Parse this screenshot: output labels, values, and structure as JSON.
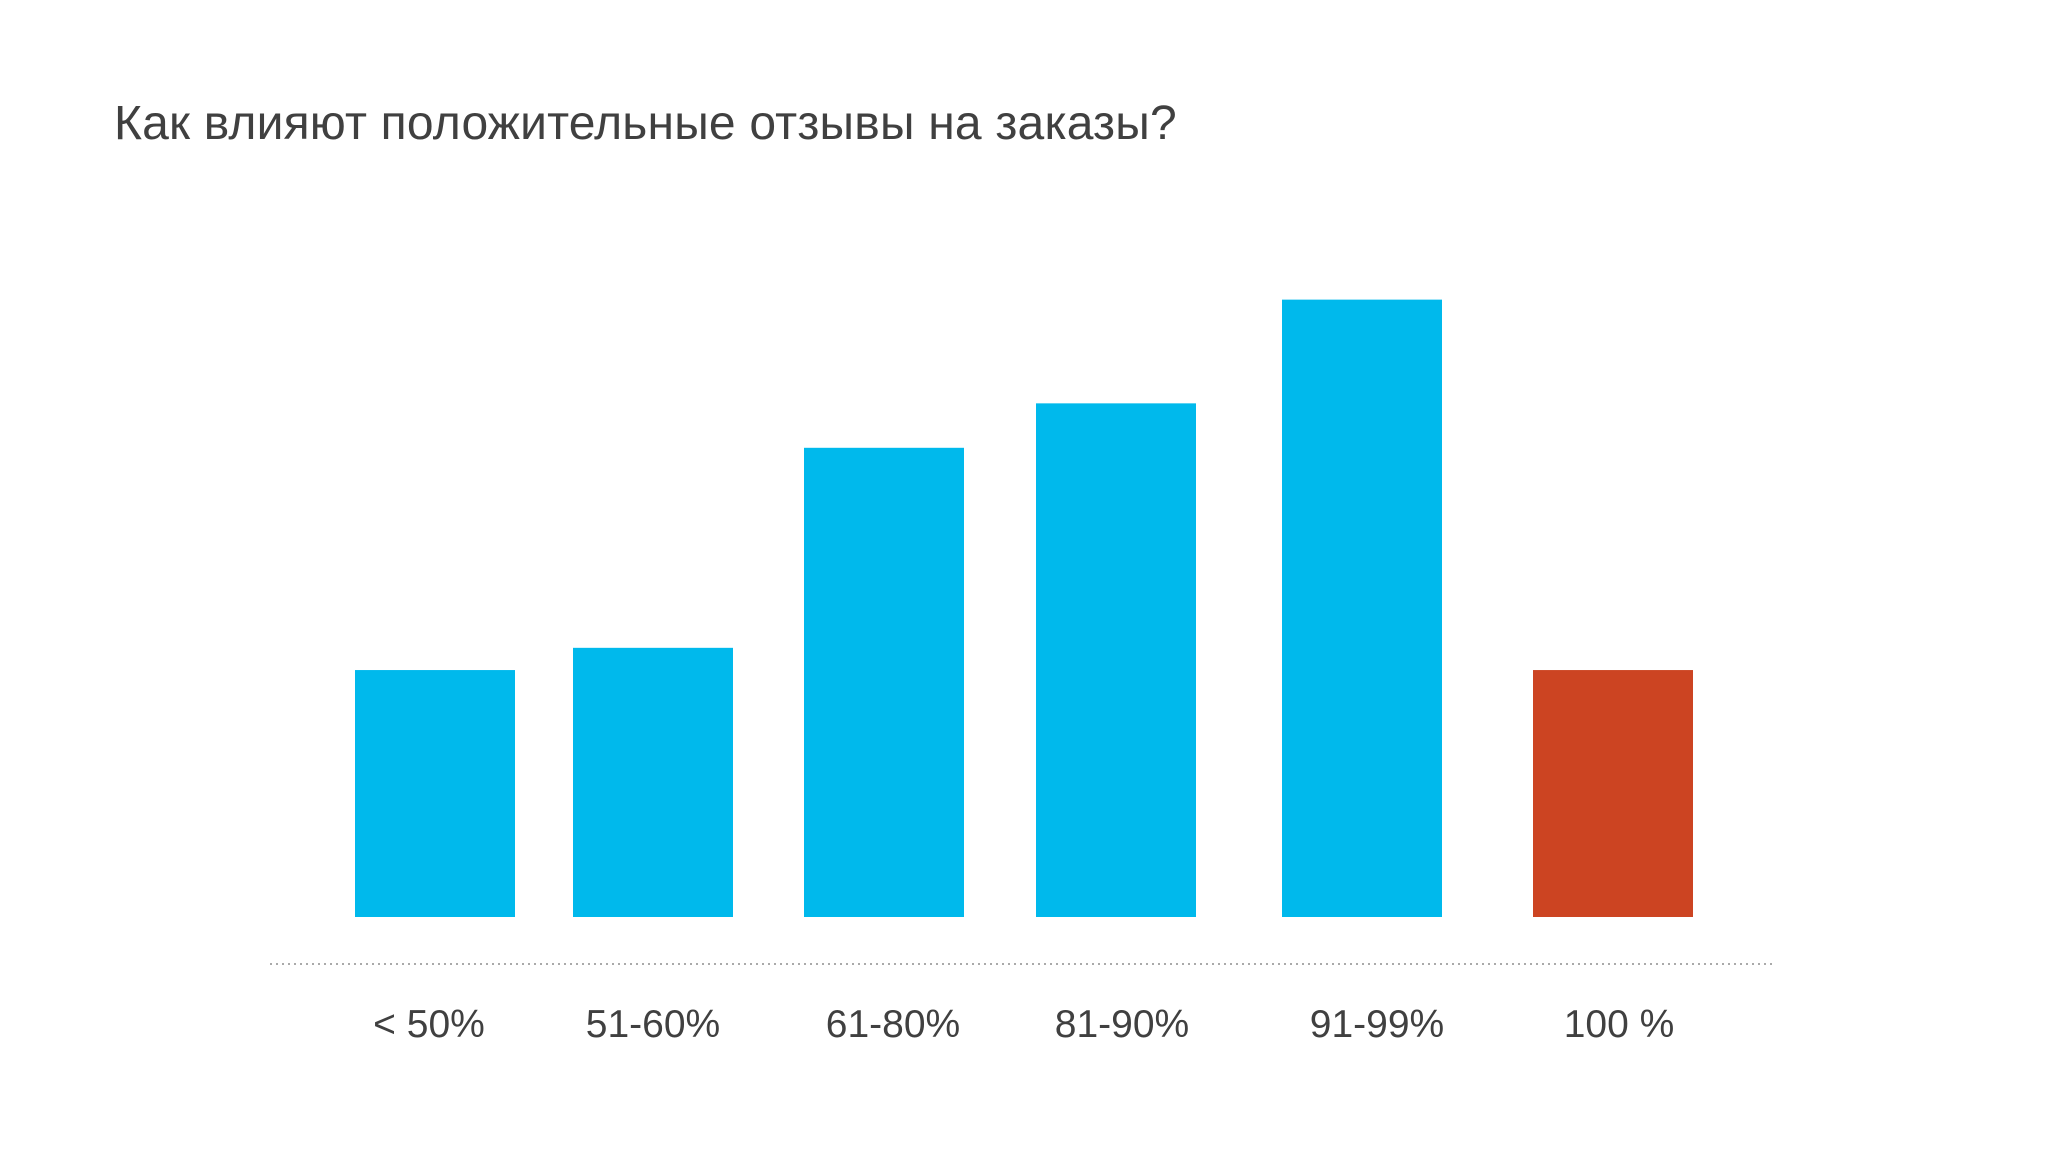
{
  "slide": {
    "title": "Как влияют положительные отзывы на заказы?"
  },
  "chart_data": {
    "type": "bar",
    "title": "Как влияют положительные отзывы на заказы?",
    "xlabel": "",
    "ylabel": "",
    "categories": [
      "< 50%",
      "51-60%",
      "61-80%",
      "81-90%",
      "91-99%",
      "100 %"
    ],
    "values": [
      100,
      109,
      190,
      208,
      250,
      100
    ],
    "highlight_index": 5,
    "ylim": [
      0,
      262
    ],
    "grid": false,
    "legend": "none",
    "colors": {
      "bar": "#00B9EC",
      "highlight": "#CC4422",
      "baseline": "#AAAAAA",
      "text": "#404040"
    }
  }
}
